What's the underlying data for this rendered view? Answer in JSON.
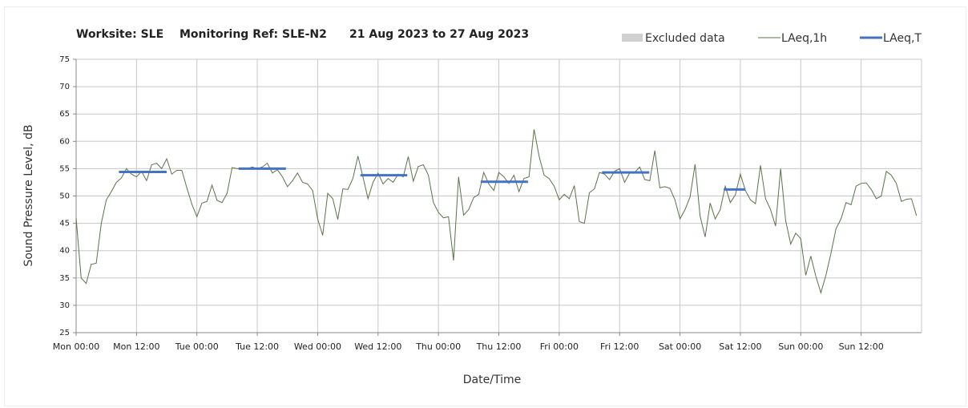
{
  "chart_data": {
    "type": "line",
    "title": [
      "Worksite: SLE",
      "Monitoring Ref: SLE-N2",
      "21 Aug 2023 to 27 Aug 2023"
    ],
    "xlabel": "Date/Time",
    "ylabel": "Sound Pressure Level, dB",
    "xlim": [
      0,
      168
    ],
    "ylim": [
      25,
      75
    ],
    "xticks": [
      {
        "value": 0,
        "label": "Mon 00:00"
      },
      {
        "value": 12,
        "label": "Mon 12:00"
      },
      {
        "value": 24,
        "label": "Tue 00:00"
      },
      {
        "value": 36,
        "label": "Tue 12:00"
      },
      {
        "value": 48,
        "label": "Wed 00:00"
      },
      {
        "value": 60,
        "label": "Wed 12:00"
      },
      {
        "value": 72,
        "label": "Thu 00:00"
      },
      {
        "value": 84,
        "label": "Thu 12:00"
      },
      {
        "value": 96,
        "label": "Fri 00:00"
      },
      {
        "value": 108,
        "label": "Fri 12:00"
      },
      {
        "value": 120,
        "label": "Sat 00:00"
      },
      {
        "value": 132,
        "label": "Sat 12:00"
      },
      {
        "value": 144,
        "label": "Sun 00:00"
      },
      {
        "value": 156,
        "label": "Sun 12:00"
      }
    ],
    "yticks": [
      25,
      30,
      35,
      40,
      45,
      50,
      55,
      60,
      65,
      70,
      75
    ],
    "grid": true,
    "series": [
      {
        "name": "Excluded data",
        "color": "#d0d0d0",
        "x": [],
        "values": []
      },
      {
        "name": "LAeq,1h",
        "color": "#5a7447",
        "x": [
          0,
          1,
          2,
          3,
          4,
          5,
          6,
          7,
          8,
          9,
          10,
          11,
          12,
          13,
          14,
          15,
          16,
          17,
          18,
          19,
          20,
          21,
          22,
          23,
          24,
          25,
          26,
          27,
          28,
          29,
          30,
          31,
          32,
          33,
          34,
          35,
          36,
          37,
          38,
          39,
          40,
          41,
          42,
          43,
          44,
          45,
          46,
          47,
          48,
          49,
          50,
          51,
          52,
          53,
          54,
          55,
          56,
          57,
          58,
          59,
          60,
          61,
          62,
          63,
          64,
          65,
          66,
          67,
          68,
          69,
          70,
          71,
          72,
          73,
          74,
          75,
          76,
          77,
          78,
          79,
          80,
          81,
          82,
          83,
          84,
          85,
          86,
          87,
          88,
          89,
          90,
          91,
          92,
          93,
          94,
          95,
          96,
          97,
          98,
          99,
          100,
          101,
          102,
          103,
          104,
          105,
          106,
          107,
          108,
          109,
          110,
          111,
          112,
          113,
          114,
          115,
          116,
          117,
          118,
          119,
          120,
          121,
          122,
          123,
          124,
          125,
          126,
          127,
          128,
          129,
          130,
          131,
          132,
          133,
          134,
          135,
          136,
          137,
          138,
          139,
          140,
          141,
          142,
          143,
          144,
          145,
          146,
          147,
          148,
          149,
          150,
          151,
          152,
          153,
          154,
          155,
          156,
          157,
          158,
          159,
          160,
          161,
          162,
          163,
          164,
          165,
          166,
          167
        ],
        "values": [
          46,
          35,
          34,
          37.5,
          37.7,
          45,
          49.3,
          50.8,
          52.5,
          53.3,
          55,
          54,
          53.5,
          54.5,
          52.8,
          55.7,
          56,
          55,
          56.8,
          54,
          54.7,
          54.7,
          51.5,
          48.5,
          46.2,
          48.7,
          49,
          52,
          49.2,
          48.8,
          50.5,
          55.2,
          55,
          55,
          55,
          55.3,
          55,
          55.3,
          56,
          54.2,
          54.8,
          53.5,
          51.7,
          52.8,
          54.2,
          52.5,
          52.2,
          51,
          45.8,
          42.8,
          50.5,
          49.5,
          45.7,
          51.3,
          51.2,
          53.2,
          57.3,
          53.5,
          49.5,
          52.5,
          54.2,
          52.2,
          53.2,
          52.5,
          54,
          53.5,
          57.2,
          52.7,
          55.4,
          55.7,
          53.8,
          48.8,
          47,
          46,
          46.2,
          38.2,
          53.5,
          46.5,
          47.5,
          49.7,
          50.3,
          54.3,
          52.2,
          51,
          54.3,
          53.5,
          52.3,
          53.8,
          50.8,
          53.2,
          53.5,
          62.2,
          57.3,
          53.8,
          53.2,
          51.8,
          49.3,
          50.3,
          49.5,
          51.9,
          45.3,
          45,
          50.6,
          51.3,
          54.3,
          54,
          53,
          54.5,
          55,
          52.5,
          54.2,
          54.3,
          55.3,
          53,
          52.8,
          58.3,
          51.5,
          51.7,
          51.4,
          49.3,
          45.8,
          47.5,
          49.8,
          55.8,
          46.3,
          42.5,
          48.7,
          45.8,
          47.5,
          51.8,
          48.8,
          50.2,
          54,
          51,
          49.3,
          48.6,
          55.6,
          49.5,
          47.5,
          44.5,
          55,
          45.5,
          41.2,
          43.2,
          42.2,
          35.5,
          39,
          35.3,
          32.3,
          35.5,
          39.5,
          44,
          45.8,
          48.8,
          48.4,
          51.8,
          52.3,
          52.4,
          51.2,
          49.5,
          50,
          54.5,
          53.8,
          52.3,
          49,
          49.4,
          49.5,
          46.4
        ]
      },
      {
        "name": "LAeq,T",
        "color": "#4472c4",
        "x": [
          8.5,
          18,
          25,
          32.3,
          41.7,
          49,
          56.5,
          65.8,
          73,
          80.4,
          89.8,
          97,
          104.5,
          113.9,
          121,
          128.7,
          133
        ],
        "values": [
          54.4,
          54.4,
          null,
          55,
          55,
          null,
          53.8,
          53.8,
          null,
          52.6,
          52.6,
          null,
          54.3,
          54.3,
          null,
          51.2,
          51.2
        ]
      }
    ]
  }
}
